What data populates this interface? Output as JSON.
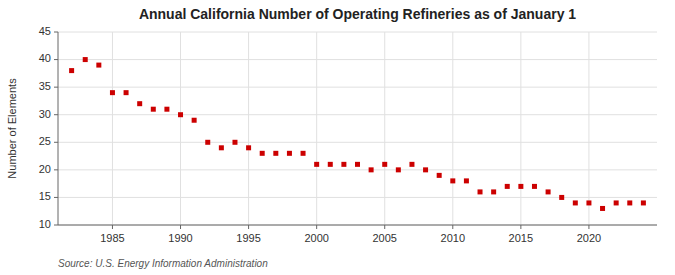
{
  "chart_data": {
    "type": "scatter",
    "title": "Annual California Number of Operating Refineries as of January 1",
    "ylabel": "Number of Elements",
    "source": "Source: U.S. Energy Information Administration",
    "x": [
      1982,
      1983,
      1984,
      1985,
      1986,
      1987,
      1988,
      1989,
      1990,
      1991,
      1992,
      1993,
      1994,
      1995,
      1996,
      1997,
      1998,
      1999,
      2000,
      2001,
      2002,
      2003,
      2004,
      2005,
      2006,
      2007,
      2008,
      2009,
      2010,
      2011,
      2012,
      2013,
      2014,
      2015,
      2016,
      2017,
      2018,
      2019,
      2020,
      2021,
      2022,
      2023,
      2024
    ],
    "values": [
      38,
      40,
      39,
      34,
      34,
      32,
      31,
      31,
      30,
      29,
      25,
      24,
      25,
      24,
      23,
      23,
      23,
      23,
      21,
      21,
      21,
      21,
      20,
      21,
      20,
      21,
      20,
      19,
      18,
      18,
      16,
      16,
      17,
      17,
      17,
      16,
      15,
      14,
      14,
      13,
      14,
      14,
      14
    ],
    "color": "#cc0000",
    "marker": "square",
    "xlim": [
      1981,
      2025
    ],
    "xticks": [
      1985,
      1990,
      1995,
      2000,
      2005,
      2010,
      2015,
      2020
    ],
    "ylim": [
      10,
      45
    ],
    "yticks": [
      10,
      15,
      20,
      25,
      30,
      35,
      40,
      45
    ],
    "grid": true
  }
}
